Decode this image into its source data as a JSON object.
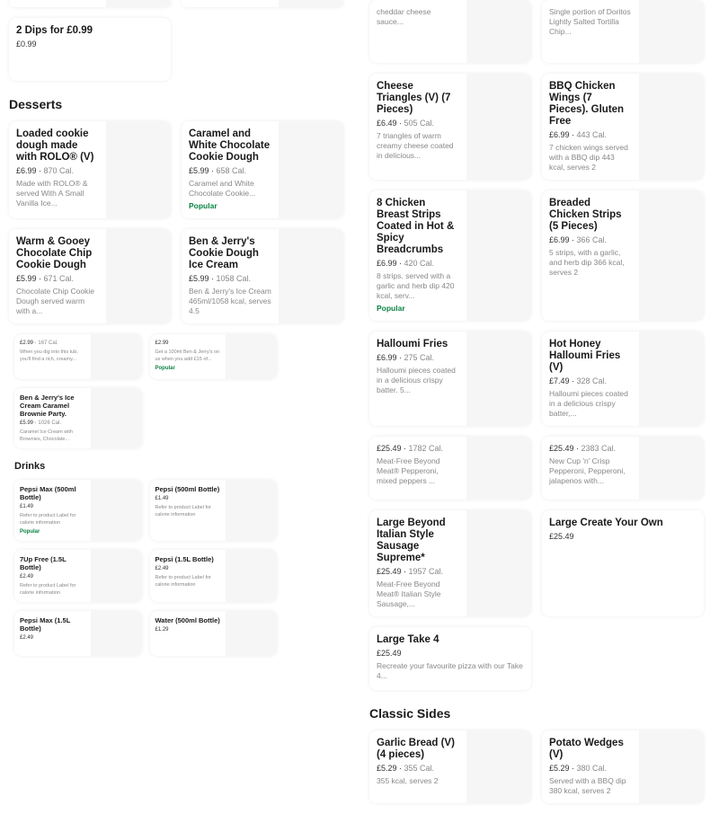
{
  "sections": {
    "desserts": "Desserts",
    "drinks": "Drinks",
    "classic_sides": "Classic Sides"
  },
  "items": [
    {
      "title": "2 Dips for £0.99",
      "price": "£0.99"
    },
    {
      "title": "Loaded cookie dough made with ROLO® (V)",
      "price": "£6.99",
      "cal": "870 Cal.",
      "desc": "Made with ROLO® & served With A Small Vanilla Ice..."
    },
    {
      "title": "Caramel and White Chocolate Cookie Dough",
      "price": "£5.99",
      "cal": "658 Cal.",
      "desc": "Caramel and White Chocolate Cookie...",
      "popular": "Popular"
    },
    {
      "title": "Warm & Gooey Chocolate Chip Cookie Dough",
      "price": "£5.99",
      "cal": "671 Cal.",
      "desc": "Chocolate Chip Cookie Dough served warm with a..."
    },
    {
      "title": "Ben & Jerry's Cookie Dough Ice Cream",
      "price": "£5.99",
      "cal": "1058 Cal.",
      "desc": "Ben & Jerry's Ice Cream 465ml/1058 kcal, serves 4.5"
    },
    {
      "price": "£2.99",
      "cal": "167 Cal.",
      "desc": "When you dig into this tub, you'll find a rich, creamy..."
    },
    {
      "price": "£2.99",
      "desc": "Get a 100ml Ben & Jerry's on us when you add £15 of...",
      "popular": "Popular"
    },
    {
      "title": "Ben & Jerry's Ice Cream Caramel Brownie Party.",
      "price": "£5.99",
      "cal": "1026 Cal.",
      "desc": "Caramel Ice Cream with Brownies, Chocolate..."
    },
    {
      "title": "Pepsi Max (500ml Bottle)",
      "price": "£1.49",
      "desc": "Refer to product Label for calorie information",
      "popular": "Popular"
    },
    {
      "title": "Pepsi (500ml Bottle)",
      "price": "£1.49",
      "desc": "Refer to product Label for calorie information"
    },
    {
      "title": "7Up Free (1.5L Bottle)",
      "price": "£2.49",
      "desc": "Refer to product Label for calorie information"
    },
    {
      "title": "Pepsi (1.5L Bottle)",
      "price": "£2.49",
      "desc": "Refer to product Label for calorie information"
    },
    {
      "title": "Pepsi Max (1.5L Bottle)",
      "price": "£2.49"
    },
    {
      "title": "Water (500ml Bottle)",
      "price": "£1.29"
    },
    {
      "desc": "cheddar cheese sauce..."
    },
    {
      "desc": "Single portion of Doritos Lightly Salted Tortilla Chip..."
    },
    {
      "title": "Cheese Triangles (V) (7 Pieces)",
      "price": "£6.49",
      "cal": "505 Cal.",
      "desc": "7 triangles of warm creamy cheese coated in delicious..."
    },
    {
      "title": "BBQ Chicken Wings (7 Pieces). Gluten Free",
      "price": "£6.99",
      "cal": "443 Cal.",
      "desc": "7 chicken wings served with a BBQ dip 443 kcal, serves 2"
    },
    {
      "title": "8 Chicken Breast Strips Coated in Hot & Spicy Breadcrumbs",
      "price": "£6.99",
      "cal": "420 Cal.",
      "desc": "8 strips. served with a garlic and herb dip 420 kcal, serv...",
      "popular": "Popular"
    },
    {
      "title": "Breaded Chicken Strips (5 Pieces)",
      "price": "£6.99",
      "cal": "366 Cal.",
      "desc": "5 strips, with a garlic, and herb dip 366 kcal, serves 2"
    },
    {
      "title": "Halloumi Fries",
      "price": "£6.99",
      "cal": "275 Cal.",
      "desc": "Halloumi pieces coated in a delicious crispy batter. 5..."
    },
    {
      "title": "Hot Honey Halloumi Fries (V)",
      "price": "£7.49",
      "cal": "328 Cal.",
      "desc": "Halloumi pieces coated in a delicious crispy batter,..."
    },
    {
      "price": "£25.49",
      "cal": "1782 Cal.",
      "desc": "Meat-Free Beyond Meat® Pepperoni, mixed peppers ..."
    },
    {
      "price": "£25.49",
      "cal": "2383 Cal.",
      "desc": "New Cup 'n' Crisp Pepperoni, Pepperoni, jalapenos with..."
    },
    {
      "title": "Large Beyond Italian Style Sausage Supreme*",
      "price": "£25.49",
      "cal": "1957 Cal.",
      "desc": "Meat-Free Beyond Meat® Italian Style Sausage,..."
    },
    {
      "title": "Large Create Your Own",
      "price": "£25.49"
    },
    {
      "title": "Large Take 4",
      "price": "£25.49",
      "desc": "Recreate your favourite pizza with our Take 4..."
    },
    {
      "title": "Garlic Bread (V) (4 pieces)",
      "price": "£5.29",
      "cal": "355 Cal.",
      "desc": "355 kcal, serves 2"
    },
    {
      "title": "Potato Wedges (V)",
      "price": "£5.29",
      "cal": "380 Cal.",
      "desc": "Served with a BBQ dip 380 kcal, serves 2"
    }
  ]
}
